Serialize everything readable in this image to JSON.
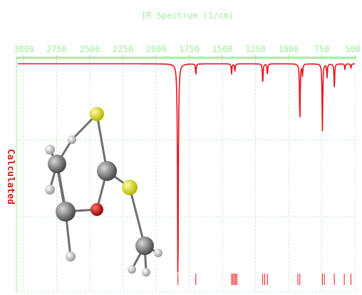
{
  "chart_data": {
    "type": "line",
    "title": "IR Spectrum (1/cm)",
    "ylabel": "Calculated",
    "xlim": [
      3000,
      500
    ],
    "x_reversed": true,
    "x_ticks": [
      "3000",
      "2750",
      "2500",
      "2250",
      "2000",
      "1750",
      "1500",
      "1250",
      "1000",
      "750",
      "500"
    ],
    "grid": true,
    "series": [
      {
        "color": "#e8141c",
        "peaks": [
          {
            "x": 1835,
            "depth": 1.0,
            "width": 7
          },
          {
            "x": 1700,
            "depth": 0.05,
            "width": 6
          },
          {
            "x": 1430,
            "depth": 0.045,
            "width": 6
          },
          {
            "x": 1405,
            "depth": 0.035,
            "width": 6
          },
          {
            "x": 1195,
            "depth": 0.09,
            "width": 6
          },
          {
            "x": 1160,
            "depth": 0.05,
            "width": 6
          },
          {
            "x": 915,
            "depth": 0.26,
            "width": 6
          },
          {
            "x": 895,
            "depth": 0.05,
            "width": 6
          },
          {
            "x": 745,
            "depth": 0.3,
            "width": 6
          },
          {
            "x": 710,
            "depth": 0.06,
            "width": 6
          },
          {
            "x": 655,
            "depth": 0.11,
            "width": 6
          },
          {
            "x": 575,
            "depth": 0.025,
            "width": 6
          },
          {
            "x": 530,
            "depth": 0.02,
            "width": 6
          }
        ]
      }
    ],
    "stick_lines": [
      1835,
      1700,
      1430,
      1420,
      1410,
      1400,
      1390,
      1195,
      1180,
      1160,
      930,
      915,
      745,
      730,
      655,
      580,
      530
    ],
    "stick_color": "#e8141c",
    "axis_color": "#9ef09e",
    "grid_color": "#b8e8b8"
  },
  "molecule": {
    "atom_colors": {
      "S": "#e6e61e",
      "O": "#cc1111",
      "C": "#8a8a8a",
      "H": "#dcdcdc"
    }
  }
}
